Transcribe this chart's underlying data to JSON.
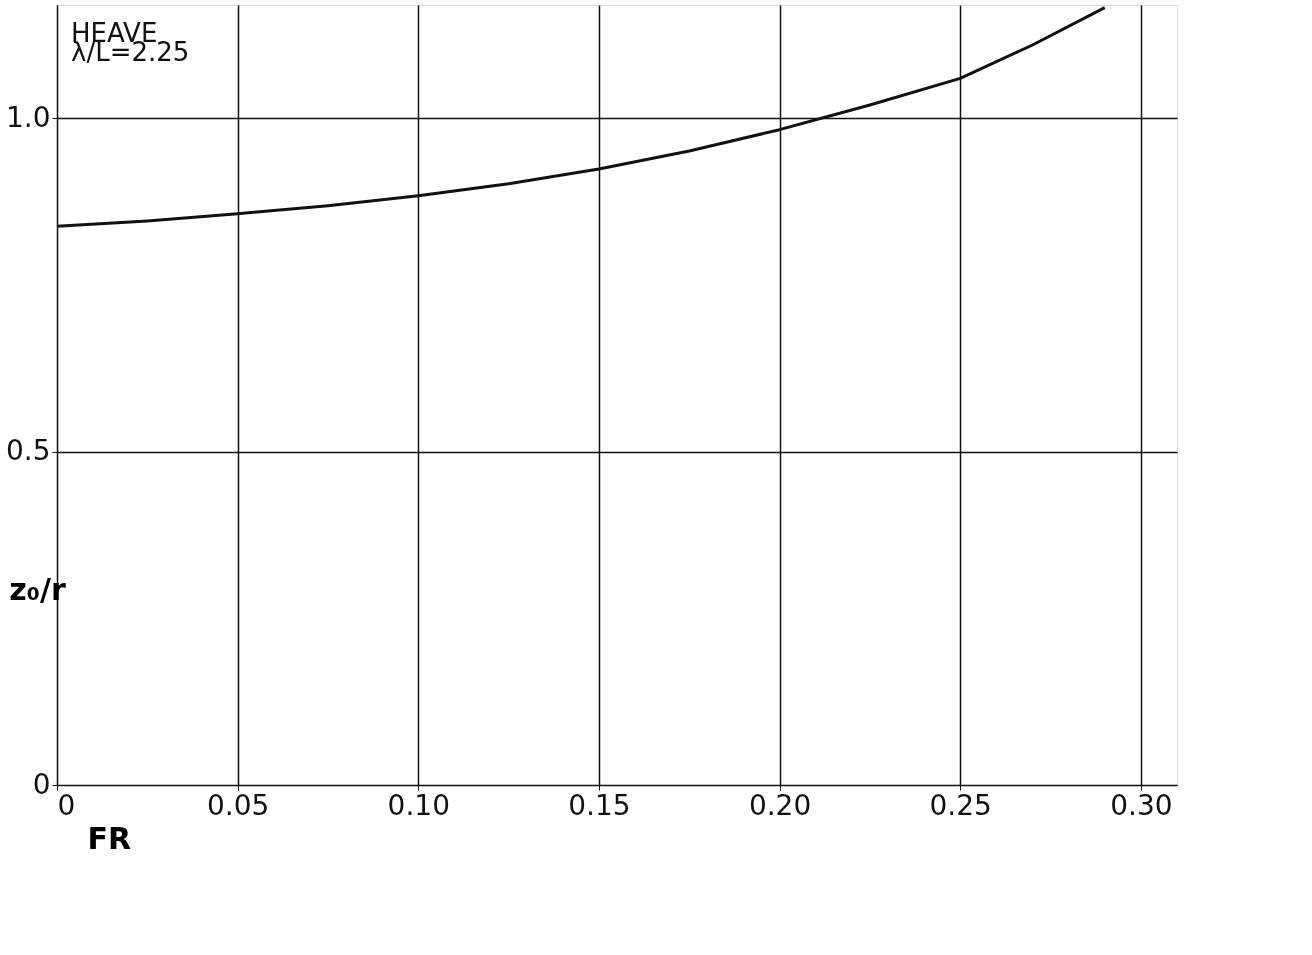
{
  "chart_data": {
    "type": "line",
    "xlabel": "FR",
    "ylabel": "z₀/r",
    "annotations": [
      "HEAVE",
      "λ/L=2.25"
    ],
    "x": [
      0,
      0.025,
      0.05,
      0.075,
      0.1,
      0.125,
      0.15,
      0.175,
      0.2,
      0.225,
      0.25,
      0.27,
      0.29
    ],
    "series": [
      {
        "color": "#111111",
        "values": [
          0.838,
          0.846,
          0.857,
          0.869,
          0.884,
          0.902,
          0.924,
          0.951,
          0.983,
          1.02,
          1.06,
          1.11,
          1.166
        ]
      }
    ],
    "xlim": [
      0,
      0.31
    ],
    "ylim": [
      0,
      1.17
    ],
    "xticks": [
      0,
      {
        "value": 0.05,
        "label": "0.05"
      },
      {
        "value": 0.1,
        "label": "0.10"
      },
      0.15,
      {
        "value": 0.2,
        "label": "0.20"
      },
      0.25,
      {
        "value": 0.3,
        "label": "0.30"
      }
    ],
    "yticks": [
      0,
      0.5,
      {
        "value": 1.0,
        "label": "1.0"
      }
    ],
    "grid": true,
    "marker": "none",
    "line_style": "solid"
  }
}
